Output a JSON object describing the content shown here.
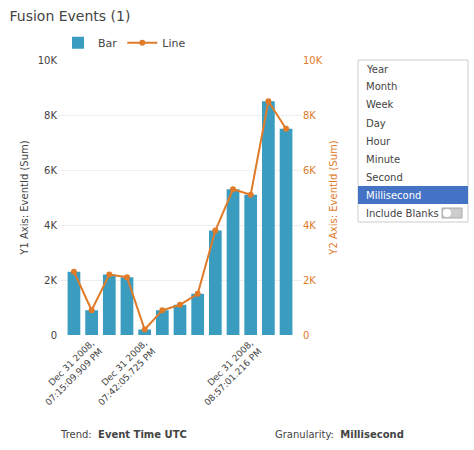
{
  "chart_data": {
    "type": "bar",
    "title": "Fusion Events (1)",
    "categories": [
      null,
      "Dec 31 2008,\n07:15:09.909 PM",
      null,
      null,
      "Dec 31 2008,\n07:42:05.725 PM",
      null,
      null,
      null,
      null,
      null,
      "Dec 31 2008,\n08:57:01.216 PM",
      null,
      null
    ],
    "series": [
      {
        "name": "Bar",
        "type": "bar",
        "color": "#3a9dc0",
        "values": [
          2300,
          900,
          2200,
          2100,
          200,
          900,
          1100,
          1500,
          3800,
          5300,
          5100,
          8500,
          7500
        ]
      },
      {
        "name": "Line",
        "type": "line",
        "axis": "y2",
        "color": "#e07b2a",
        "marker": "circle",
        "values": [
          2300,
          900,
          2200,
          2100,
          200,
          900,
          1100,
          1500,
          3800,
          5300,
          5100,
          8500,
          7500
        ]
      }
    ],
    "ylabel": "Y1 Axis: EventId (Sum)",
    "y2label": "Y2 Axis: EventId (Sum)",
    "ylim": [
      0,
      10000
    ],
    "yticks": [
      0,
      {
        "value": 2000,
        "label": "2K"
      },
      {
        "value": 4000,
        "label": "4K"
      },
      {
        "value": 6000,
        "label": "6K"
      },
      {
        "value": 8000,
        "label": "8K"
      },
      {
        "value": 10000,
        "label": "10K"
      }
    ],
    "y2lim": [
      0,
      10000
    ],
    "y2ticks": [
      0,
      {
        "value": 2000,
        "label": "2K"
      },
      {
        "value": 4000,
        "label": "4K"
      },
      {
        "value": 6000,
        "label": "6K"
      },
      {
        "value": 8000,
        "label": "8K"
      },
      {
        "value": 10000,
        "label": "10K"
      }
    ],
    "grid": true,
    "legend": "top",
    "footer": [
      {
        "label": "Trend:",
        "value": "Event Time UTC"
      },
      {
        "label": "Granularity:",
        "value": "Millisecond"
      }
    ],
    "dropdown": {
      "items": [
        "Year",
        "Month",
        "Week",
        "Day",
        "Hour",
        "Minute",
        "Second",
        "Millisecond"
      ],
      "selected": "Millisecond",
      "include_blanks": "Include Blanks",
      "selected_color": "#4472c4",
      "selected_text_color": "#ffffff"
    }
  }
}
